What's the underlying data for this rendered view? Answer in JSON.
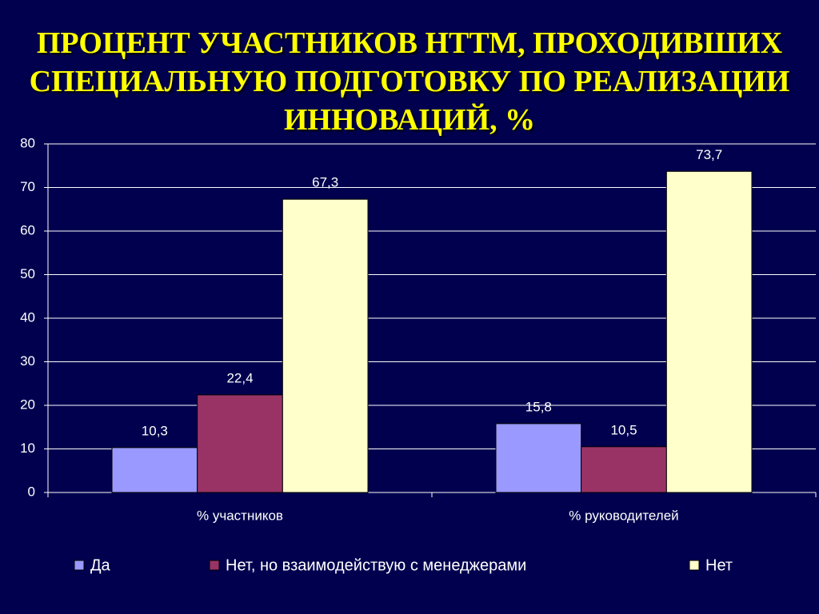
{
  "chart_data": {
    "type": "bar",
    "title": "ПРОЦЕНТ УЧАСТНИКОВ НТТМ, ПРОХОДИВШИХ СПЕЦИАЛЬНУЮ ПОДГОТОВКУ ПО РЕАЛИЗАЦИИ ИННОВАЦИЙ, %",
    "categories": [
      "% участников",
      "% руководителей"
    ],
    "series": [
      {
        "name": "Да",
        "color": "#9999ff",
        "values": [
          10.3,
          15.8
        ],
        "value_labels": [
          "10,3",
          "15,8"
        ]
      },
      {
        "name": "Нет, но взаимодействую с менеджерами",
        "color": "#993366",
        "values": [
          22.4,
          10.5
        ],
        "value_labels": [
          "22,4",
          "10,5"
        ]
      },
      {
        "name": "Нет",
        "color": "#ffffcc",
        "values": [
          67.3,
          73.7
        ],
        "value_labels": [
          "67,3",
          "73,7"
        ]
      }
    ],
    "ylim": [
      0,
      80
    ],
    "yticks": [
      0,
      10,
      20,
      30,
      40,
      50,
      60,
      70,
      80
    ],
    "grid": true,
    "legend": "bottom"
  }
}
